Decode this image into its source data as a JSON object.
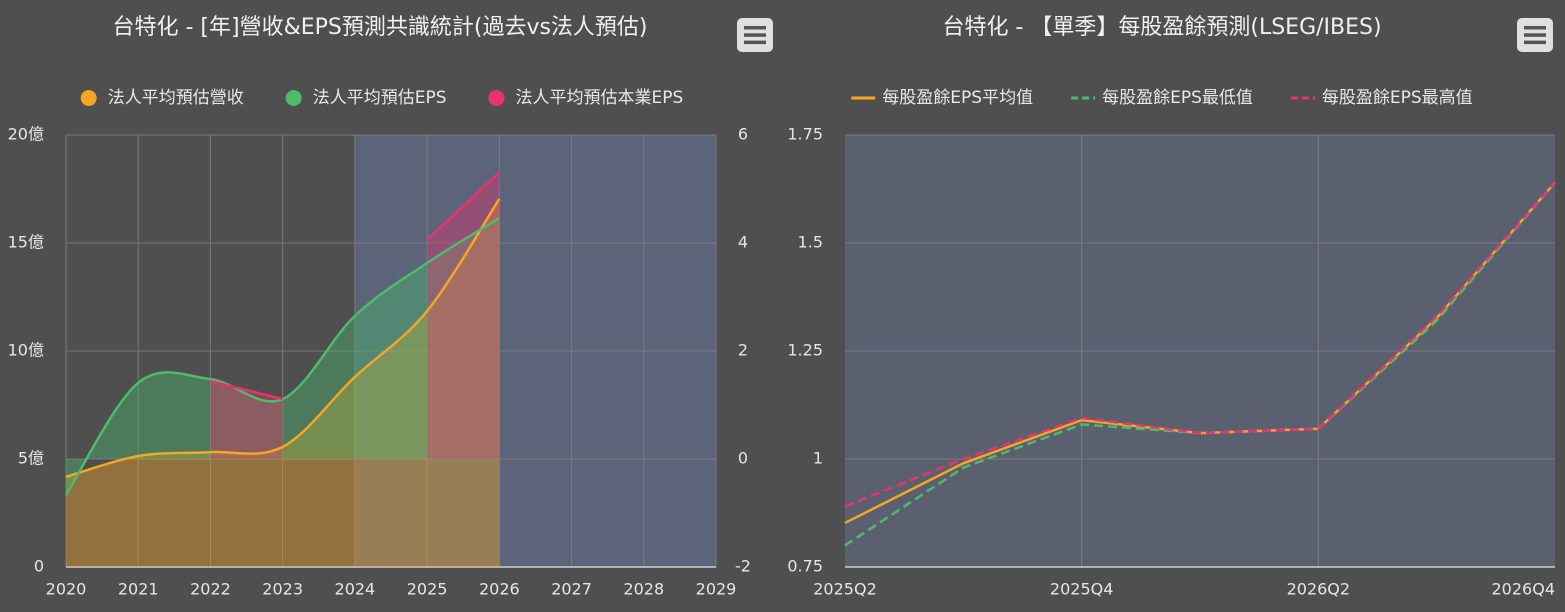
{
  "chart_data": [
    {
      "type": "line",
      "title": "台特化 - [年]營收&EPS預測共識統計(過去vs法人預估)",
      "x": [
        2020,
        2021,
        2022,
        2023,
        2024,
        2025,
        2026
      ],
      "series": [
        {
          "name": "法人平均預估營收",
          "color": "#f5a623",
          "values": [
            4.17,
            5.14,
            5.32,
            5.56,
            8.8,
            11.85,
            17.04
          ],
          "area": true
        },
        {
          "name": "法人平均預估EPS",
          "color": "#4cbb6c",
          "values": [
            -0.67,
            1.41,
            1.48,
            1.11,
            2.65,
            3.63,
            4.46
          ],
          "axis": "y2",
          "area": true
        },
        {
          "name": "法人平均預估本業EPS",
          "color": "#e8336e",
          "values": [
            null,
            null,
            1.44,
            1.11,
            null,
            4.06,
            5.31
          ],
          "axis": "y2",
          "area": true
        }
      ],
      "xlim": [
        2020,
        2029
      ],
      "xticks": [
        2020,
        2021,
        2022,
        2023,
        2024,
        2025,
        2026,
        2027,
        2028,
        2029
      ],
      "ylim": [
        0,
        20
      ],
      "yticks": [
        0,
        {
          "value": 5,
          "label": "5億"
        },
        {
          "value": 10,
          "label": "10億"
        },
        {
          "value": 15,
          "label": "15億"
        },
        {
          "value": 20,
          "label": "20億"
        }
      ],
      "y2lim": [
        -2,
        6
      ],
      "y2ticks": [
        -2,
        0,
        2,
        4,
        6
      ],
      "grid": true,
      "smooth": true,
      "legend": "top",
      "band": {
        "from": 2024,
        "to": 2029,
        "color": "#5b6479"
      }
    },
    {
      "type": "line",
      "title": "台特化 - 【單季】每股盈餘預測(LSEG/IBES)",
      "categories": [
        "2025Q2",
        null,
        "2025Q4",
        null,
        "2026Q2",
        null,
        "2026Q4"
      ],
      "series": [
        {
          "name": "每股盈餘EPS平均值",
          "color": "#f5a623",
          "values": [
            0.852,
            0.99,
            1.09,
            1.06,
            1.07,
            1.326,
            1.64
          ]
        },
        {
          "name": "每股盈餘EPS最低值",
          "color": "#4cbb6c",
          "values": [
            0.8,
            0.98,
            1.08,
            1.06,
            1.07,
            1.32,
            1.64
          ],
          "dash": true
        },
        {
          "name": "每股盈餘EPS最高值",
          "color": "#e8336e",
          "values": [
            0.89,
            1.0,
            1.095,
            1.06,
            1.07,
            1.33,
            1.64
          ],
          "dash": true
        }
      ],
      "ylim": [
        0.75,
        1.75
      ],
      "yticks": [
        0.75,
        1,
        1.25,
        1.5,
        1.75
      ],
      "grid": true,
      "smooth": false,
      "legend": "top",
      "plot_background": "#5b6070"
    }
  ]
}
